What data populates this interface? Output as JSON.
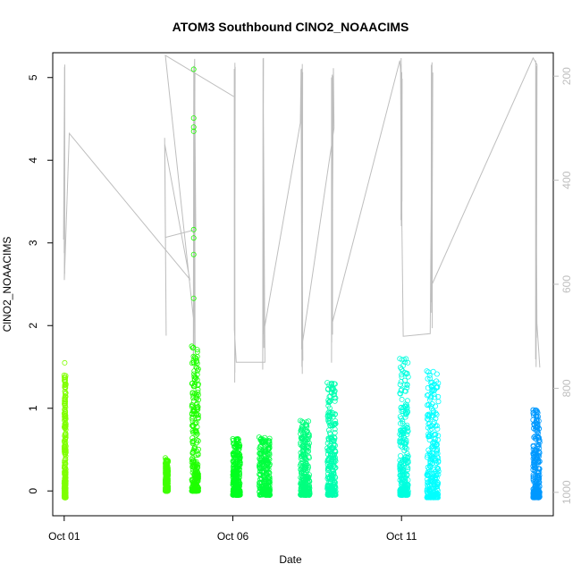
{
  "chart_data": {
    "type": "scatter",
    "title": "ATOM3 Southbound ClNO2_NOAACIMS",
    "xlabel": "Date",
    "ylabel": "ClNO2_NOAACIMS",
    "x_ticks": [
      "Oct 01",
      "Oct 06",
      "Oct 11"
    ],
    "x_tick_values_days": [
      1,
      6,
      11
    ],
    "xlim_days": [
      0.66,
      15.5
    ],
    "ylim": [
      -0.3,
      5.3
    ],
    "y_ticks": [
      0,
      1,
      2,
      3,
      4,
      5
    ],
    "y2_label": "",
    "y2_ticks": [
      200,
      400,
      600,
      800,
      1000
    ],
    "y2lim": [
      1045,
      155
    ],
    "y2_reversed": true,
    "grid": false,
    "secondary_series": {
      "description_color": "#bebebe",
      "kind": "pressure line (right axis)"
    },
    "clusters": [
      {
        "x_start": 1.0,
        "x_end": 1.05,
        "y_min": -0.08,
        "y_max": 1.4,
        "outliers": [
          1.55
        ],
        "color": "#7fff00"
      },
      {
        "x_start": 4.0,
        "x_end": 4.08,
        "y_min": 0.0,
        "y_max": 0.4,
        "outliers": [],
        "color": "#3fff00"
      },
      {
        "x_start": 4.78,
        "x_end": 4.98,
        "y_min": 0.0,
        "y_max": 1.75,
        "outliers": [
          2.33,
          2.86,
          3.06,
          3.16,
          4.35,
          4.4,
          4.51,
          5.1
        ],
        "color": "#1fff00"
      },
      {
        "x_start": 6.0,
        "x_end": 6.22,
        "y_min": -0.05,
        "y_max": 0.63,
        "outliers": [],
        "color": "#00ff1f"
      },
      {
        "x_start": 6.78,
        "x_end": 7.1,
        "y_min": -0.05,
        "y_max": 0.65,
        "outliers": [],
        "color": "#00ff3f"
      },
      {
        "x_start": 8.0,
        "x_end": 8.28,
        "y_min": -0.05,
        "y_max": 0.85,
        "outliers": [],
        "color": "#00ff7f"
      },
      {
        "x_start": 8.8,
        "x_end": 9.05,
        "y_min": -0.05,
        "y_max": 1.31,
        "outliers": [],
        "color": "#00ffaf"
      },
      {
        "x_start": 10.95,
        "x_end": 11.2,
        "y_min": -0.05,
        "y_max": 1.6,
        "outliers": [],
        "color": "#00ffdf"
      },
      {
        "x_start": 11.75,
        "x_end": 12.1,
        "y_min": -0.08,
        "y_max": 1.45,
        "outliers": [],
        "color": "#00ffff"
      },
      {
        "x_start": 14.9,
        "x_end": 15.1,
        "y_min": -0.08,
        "y_max": 0.98,
        "outliers": [],
        "color": "#0099ff"
      }
    ]
  }
}
